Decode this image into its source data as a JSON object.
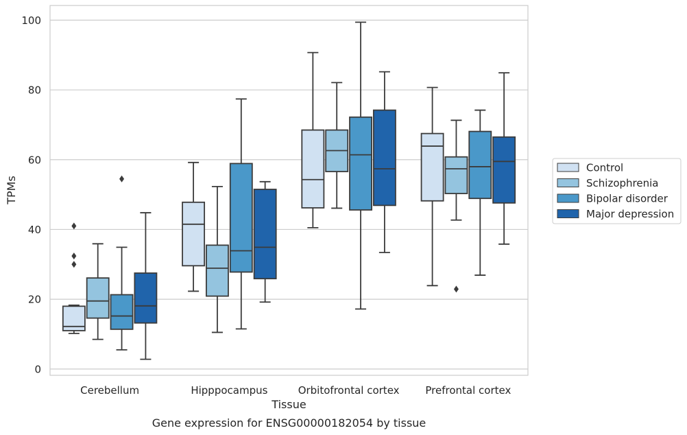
{
  "chart_data": {
    "type": "box",
    "caption": "Gene expression for ENSG00000182054 by tissue",
    "xlabel": "Tissue",
    "ylabel": "TPMs",
    "ylim": [
      -1.8,
      104.2
    ],
    "yticks": [
      0,
      20,
      40,
      60,
      80,
      100
    ],
    "grid": "horizontal",
    "legend_position": "right",
    "categories": [
      "Cerebellum",
      "Hipppocampus",
      "Orbitofrontal cortex",
      "Prefrontal cortex"
    ],
    "series": [
      {
        "name": "Control",
        "color": "#d0e1f2",
        "boxes": [
          {
            "whislo": 10.2,
            "q1": 11.0,
            "med": 12.2,
            "q3": 18.0,
            "whishi": 18.3,
            "fliers": [
              30.0,
              32.4,
              41.0
            ]
          },
          {
            "whislo": 22.3,
            "q1": 29.6,
            "med": 41.5,
            "q3": 47.8,
            "whishi": 59.2,
            "fliers": []
          },
          {
            "whislo": 40.5,
            "q1": 46.2,
            "med": 54.3,
            "q3": 68.5,
            "whishi": 90.7,
            "fliers": []
          },
          {
            "whislo": 23.9,
            "q1": 48.2,
            "med": 63.9,
            "q3": 67.5,
            "whishi": 80.7,
            "fliers": []
          }
        ]
      },
      {
        "name": "Schizophrenia",
        "color": "#94c4df",
        "boxes": [
          {
            "whislo": 8.5,
            "q1": 14.6,
            "med": 19.5,
            "q3": 26.1,
            "whishi": 35.9,
            "fliers": []
          },
          {
            "whislo": 10.5,
            "q1": 20.9,
            "med": 28.9,
            "q3": 35.5,
            "whishi": 52.3,
            "fliers": []
          },
          {
            "whislo": 46.1,
            "q1": 56.6,
            "med": 62.6,
            "q3": 68.5,
            "whishi": 82.1,
            "fliers": []
          },
          {
            "whislo": 42.7,
            "q1": 50.3,
            "med": 57.4,
            "q3": 60.8,
            "whishi": 71.3,
            "fliers": [
              22.9
            ]
          }
        ]
      },
      {
        "name": "Bipolar disorder",
        "color": "#4a98c9",
        "boxes": [
          {
            "whislo": 5.5,
            "q1": 11.4,
            "med": 15.2,
            "q3": 21.3,
            "whishi": 34.9,
            "fliers": [
              54.5
            ]
          },
          {
            "whislo": 11.5,
            "q1": 27.8,
            "med": 33.9,
            "q3": 58.9,
            "whishi": 77.4,
            "fliers": []
          },
          {
            "whislo": 17.2,
            "q1": 45.6,
            "med": 61.4,
            "q3": 72.2,
            "whishi": 99.4,
            "fliers": []
          },
          {
            "whislo": 26.9,
            "q1": 48.9,
            "med": 58.0,
            "q3": 68.1,
            "whishi": 74.2,
            "fliers": []
          }
        ]
      },
      {
        "name": "Major depression",
        "color": "#2064ab",
        "boxes": [
          {
            "whislo": 2.8,
            "q1": 13.2,
            "med": 18.1,
            "q3": 27.5,
            "whishi": 44.8,
            "fliers": []
          },
          {
            "whislo": 19.2,
            "q1": 25.9,
            "med": 34.9,
            "q3": 51.5,
            "whishi": 53.7,
            "fliers": []
          },
          {
            "whislo": 33.4,
            "q1": 46.9,
            "med": 57.4,
            "q3": 74.2,
            "whishi": 85.2,
            "fliers": []
          },
          {
            "whislo": 35.8,
            "q1": 47.6,
            "med": 59.5,
            "q3": 66.5,
            "whishi": 84.9,
            "fliers": []
          }
        ]
      }
    ]
  }
}
